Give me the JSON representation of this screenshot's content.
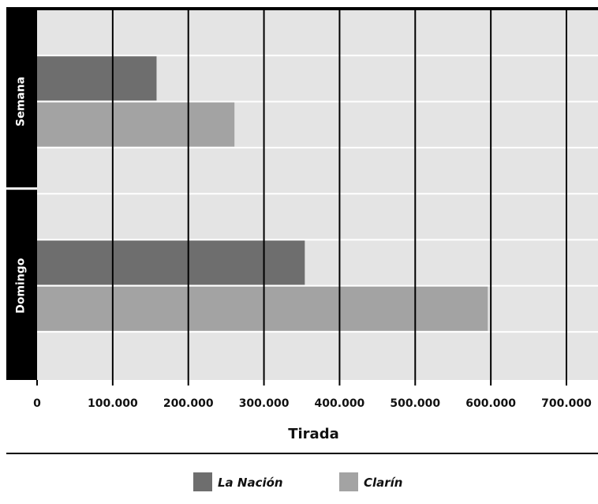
{
  "chart_data": {
    "type": "bar",
    "orientation": "horizontal",
    "categories": [
      "Semana",
      "Domingo"
    ],
    "series": [
      {
        "name": "La Nación",
        "values": [
          158000,
          354000
        ],
        "color": "#6e6e6e"
      },
      {
        "name": "Clarín",
        "values": [
          261000,
          596000
        ],
        "color": "#a3a3a3"
      }
    ],
    "xlabel": "Tirada",
    "ylabel": "",
    "xlim": [
      0,
      700000
    ],
    "xticks": [
      {
        "value": 0,
        "label": "0"
      },
      {
        "value": 100000,
        "label": "100.000"
      },
      {
        "value": 200000,
        "label": "200.000"
      },
      {
        "value": 300000,
        "label": "300.000"
      },
      {
        "value": 400000,
        "label": "400.000"
      },
      {
        "value": 500000,
        "label": "500.000"
      },
      {
        "value": 600000,
        "label": "600.000"
      },
      {
        "value": 700000,
        "label": "700.000"
      }
    ],
    "grid": true,
    "legend_position": "bottom-center",
    "colors": {
      "plot_background": "#e4e4e4",
      "category_band": "#000000",
      "gridline_vertical": "#000000",
      "gridline_horizontal": "#ffffff"
    }
  }
}
